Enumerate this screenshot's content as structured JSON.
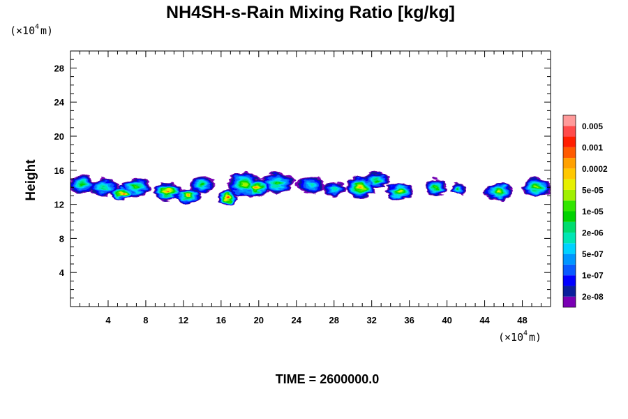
{
  "chart_data": {
    "type": "heatmap",
    "title": "NH4SH-s-Rain Mixing Ratio [kg/kg]",
    "ylabel": "Height",
    "x_unit": {
      "prefix": "(×10",
      "exponent": "4",
      "suffix": " m)"
    },
    "y_unit": {
      "prefix": "(×10",
      "exponent": "4",
      "suffix": " m)"
    },
    "xlim": [
      0,
      51
    ],
    "ylim": [
      0,
      30
    ],
    "x_ticks": [
      "4",
      "8",
      "12",
      "16",
      "20",
      "24",
      "28",
      "32",
      "36",
      "40",
      "44",
      "48"
    ],
    "x_tick_values": [
      4,
      8,
      12,
      16,
      20,
      24,
      28,
      32,
      36,
      40,
      44,
      48
    ],
    "y_ticks": [
      "4",
      "8",
      "12",
      "16",
      "20",
      "24",
      "28"
    ],
    "y_tick_values": [
      4,
      8,
      12,
      16,
      20,
      24,
      28
    ],
    "colorbar": {
      "colors": [
        "#7a00b4",
        "#0a1f9c",
        "#0000ff",
        "#0a5aff",
        "#0096ff",
        "#00d2ff",
        "#00e6b4",
        "#00dc6e",
        "#00d200",
        "#32e600",
        "#a0f000",
        "#e6f000",
        "#ffc800",
        "#ffa000",
        "#ff5a00",
        "#ff1e00",
        "#ff4b4b",
        "#ff9a9a"
      ],
      "labels": [
        "2e-08",
        "1e-07",
        "5e-07",
        "2e-06",
        "1e-05",
        "5e-05",
        "0.0002",
        "0.001",
        "0.005"
      ]
    },
    "clouds": [
      {
        "x": 1.2,
        "y": 14.3,
        "sx": 1.4,
        "sy": 1.1,
        "level": 8
      },
      {
        "x": 3.5,
        "y": 14.0,
        "sx": 1.6,
        "sy": 1.0,
        "level": 7
      },
      {
        "x": 5.5,
        "y": 13.3,
        "sx": 1.2,
        "sy": 0.8,
        "level": 14
      },
      {
        "x": 7.0,
        "y": 14.0,
        "sx": 1.5,
        "sy": 1.1,
        "level": 9
      },
      {
        "x": 10.3,
        "y": 13.5,
        "sx": 1.6,
        "sy": 1.0,
        "level": 14
      },
      {
        "x": 12.5,
        "y": 13.0,
        "sx": 1.3,
        "sy": 0.9,
        "level": 13
      },
      {
        "x": 14.0,
        "y": 14.3,
        "sx": 1.3,
        "sy": 1.0,
        "level": 8
      },
      {
        "x": 16.7,
        "y": 12.8,
        "sx": 1.0,
        "sy": 1.0,
        "level": 15
      },
      {
        "x": 18.5,
        "y": 14.3,
        "sx": 1.8,
        "sy": 1.5,
        "level": 10
      },
      {
        "x": 19.8,
        "y": 14.0,
        "sx": 1.2,
        "sy": 1.1,
        "level": 13
      },
      {
        "x": 22.0,
        "y": 14.5,
        "sx": 1.8,
        "sy": 1.2,
        "level": 9
      },
      {
        "x": 25.5,
        "y": 14.3,
        "sx": 1.5,
        "sy": 1.0,
        "level": 6
      },
      {
        "x": 28.0,
        "y": 13.8,
        "sx": 1.3,
        "sy": 0.8,
        "level": 6
      },
      {
        "x": 30.8,
        "y": 14.0,
        "sx": 1.5,
        "sy": 1.3,
        "level": 13
      },
      {
        "x": 32.5,
        "y": 14.8,
        "sx": 1.4,
        "sy": 0.9,
        "level": 8
      },
      {
        "x": 35.0,
        "y": 13.5,
        "sx": 1.5,
        "sy": 1.0,
        "level": 11
      },
      {
        "x": 38.8,
        "y": 14.0,
        "sx": 1.2,
        "sy": 1.0,
        "level": 9
      },
      {
        "x": 41.2,
        "y": 13.8,
        "sx": 0.8,
        "sy": 0.7,
        "level": 8
      },
      {
        "x": 45.5,
        "y": 13.5,
        "sx": 1.5,
        "sy": 1.0,
        "level": 11
      },
      {
        "x": 49.5,
        "y": 14.0,
        "sx": 1.6,
        "sy": 1.1,
        "level": 10
      }
    ],
    "time_label": "TIME = 2600000.0"
  }
}
